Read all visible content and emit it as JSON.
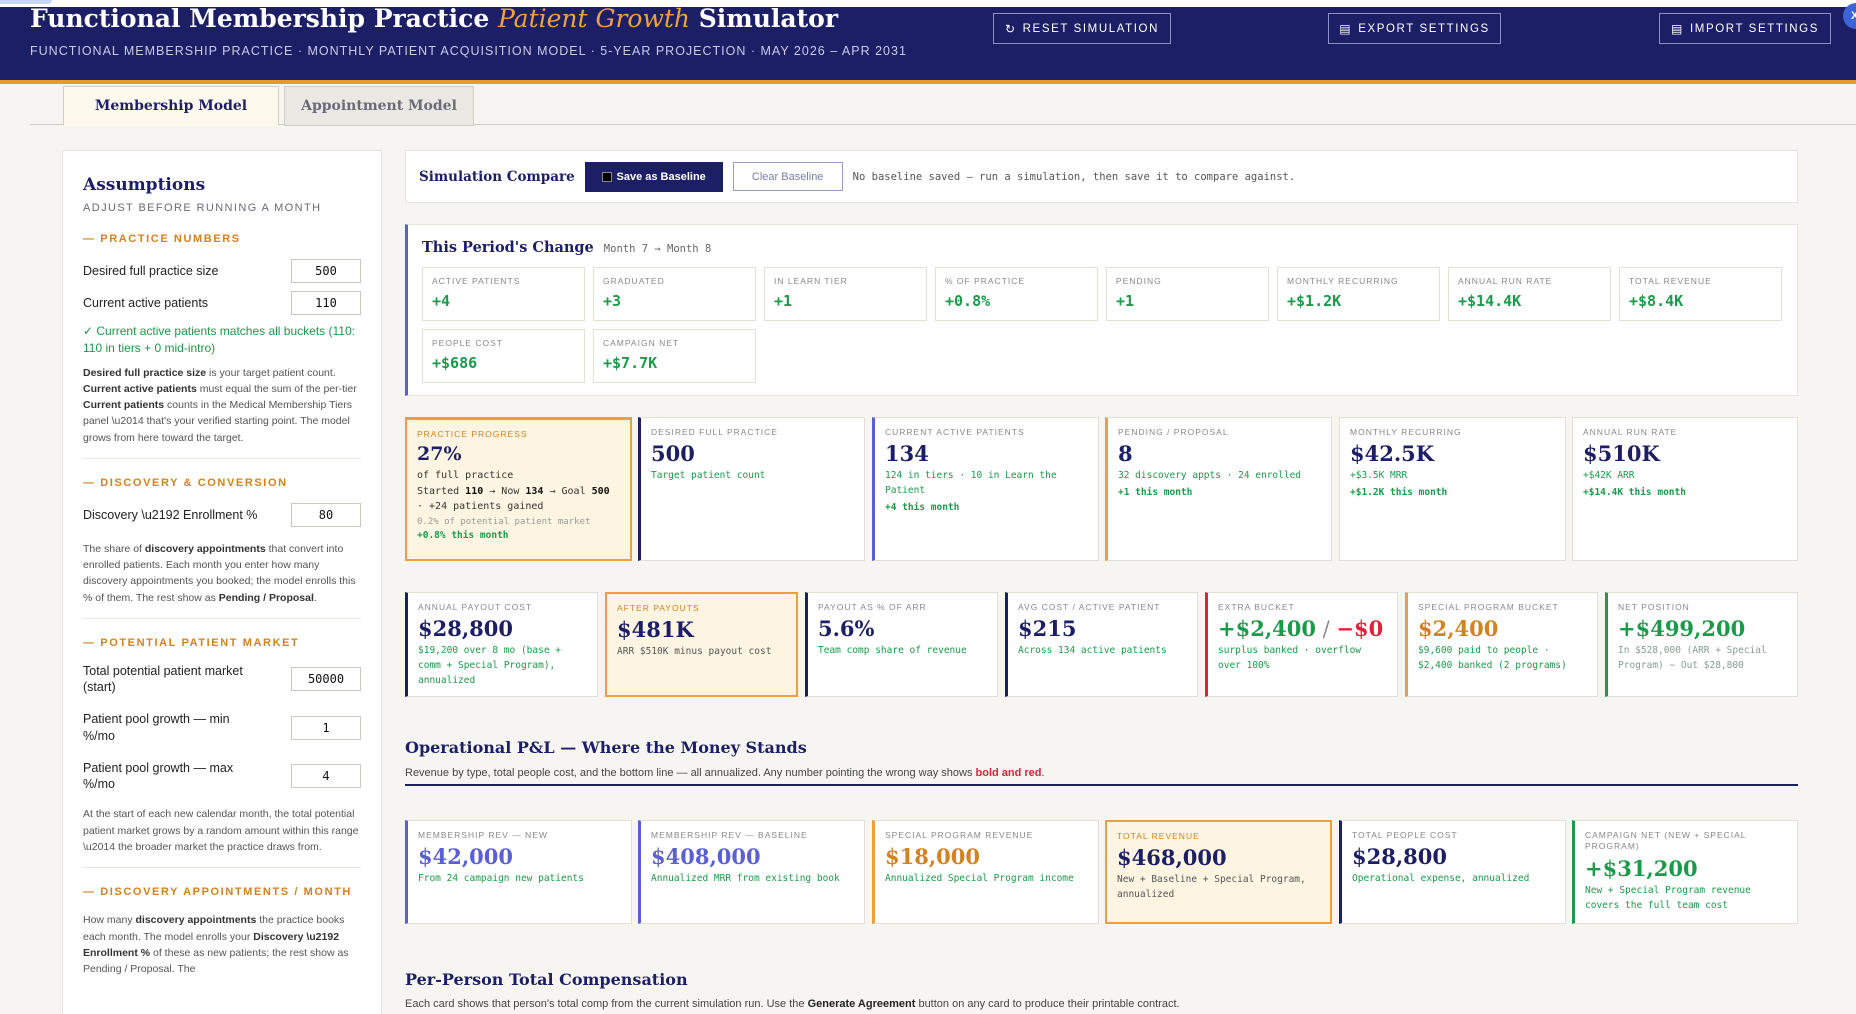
{
  "header": {
    "title_pre": "Functional Membership Practice ",
    "title_accent": "Patient Growth",
    "title_post": " Simulator",
    "subtitle": "FUNCTIONAL MEMBERSHIP PRACTICE · MONTHLY PATIENT ACQUISITION MODEL · 5-YEAR PROJECTION · MAY 2026 – APR 2031",
    "reset_label": "RESET SIMULATION",
    "export_label": "EXPORT SETTINGS",
    "import_label": "IMPORT SETTINGS",
    "close_label": "X"
  },
  "tabs": [
    {
      "label": "Membership Model"
    },
    {
      "label": "Appointment Model"
    }
  ],
  "sidebar": {
    "title": "Assumptions",
    "subtitle": "ADJUST BEFORE RUNNING A MONTH",
    "practice": {
      "heading": "— PRACTICE NUMBERS",
      "desired_label": "Desired full practice size",
      "desired_value": "500",
      "current_label": "Current active patients",
      "current_value": "110",
      "ok_msg": "✓ Current active patients matches all buckets (110: 110 in tiers + 0 mid-intro)",
      "note_b1": "Desired full practice size",
      "note_t1": " is your target patient count. ",
      "note_b2": "Current active patients",
      "note_t2": " must equal the sum of the per-tier ",
      "note_b3": "Current patients",
      "note_t3": " counts in the Medical Membership Tiers panel \\u2014 that's your verified starting point. The model grows from here toward the target."
    },
    "discovery": {
      "heading": "— DISCOVERY & CONVERSION",
      "enroll_label": "Discovery \\u2192 Enrollment %",
      "enroll_value": "80",
      "note_t1": "The share of ",
      "note_b1": "discovery appointments",
      "note_t2": " that convert into enrolled patients. Each month you enter how many discovery appointments you booked; the model enrolls this % of them. The rest show as ",
      "note_b2": "Pending / Proposal",
      "note_t3": "."
    },
    "market": {
      "heading": "— POTENTIAL PATIENT MARKET",
      "total_label": "Total potential patient market (start)",
      "total_value": "50000",
      "min_label": "Patient pool growth — min %/mo",
      "min_value": "1",
      "max_label": "Patient pool growth — max %/mo",
      "max_value": "4",
      "note": "At the start of each new calendar month, the total potential patient market grows by a random amount within this range \\u2014 the broader market the practice draws from."
    },
    "appointments": {
      "heading": "— DISCOVERY APPOINTMENTS / MONTH",
      "note_t1": "How many ",
      "note_b1": "discovery appointments",
      "note_t2": " the practice books each month. The model enrolls your ",
      "note_b2": "Discovery \\u2192 Enrollment %",
      "note_t3": " of these as new patients; the rest show as Pending / Proposal. The"
    }
  },
  "compare": {
    "title": "Simulation Compare",
    "save_label": "Save as Baseline",
    "clear_label": "Clear Baseline",
    "message": "No baseline saved — run a simulation, then save it to compare against."
  },
  "period": {
    "title": "This Period's Change",
    "months": "Month 7 → Month 8",
    "items": [
      {
        "label": "ACTIVE PATIENTS",
        "value": "+4"
      },
      {
        "label": "GRADUATED",
        "value": "+3"
      },
      {
        "label": "IN LEARN TIER",
        "value": "+1"
      },
      {
        "label": "% OF PRACTICE",
        "value": "+0.8%"
      },
      {
        "label": "PENDING",
        "value": "+1"
      },
      {
        "label": "MONTHLY RECURRING",
        "value": "+$1.2K"
      },
      {
        "label": "ANNUAL RUN RATE",
        "value": "+$14.4K"
      },
      {
        "label": "TOTAL REVENUE",
        "value": "+$8.4K"
      },
      {
        "label": "PEOPLE COST",
        "value": "+$686"
      },
      {
        "label": "CAMPAIGN NET",
        "value": "+$7.7K"
      }
    ]
  },
  "kpis": {
    "progress": {
      "label": "PRACTICE PROGRESS",
      "value": "27%",
      "of_label": "of full practice",
      "started_pre": "Started ",
      "started": "110",
      "now_pre": " → Now ",
      "now": "134",
      "goal_pre": " → Goal ",
      "goal": "500",
      "gained": "· +24 patients gained",
      "market_share": "0.2% of potential patient market",
      "delta": "+0.8% this month"
    },
    "desired": {
      "label": "DESIRED FULL PRACTICE",
      "value": "500",
      "sub": "Target patient count"
    },
    "current": {
      "label": "CURRENT ACTIVE PATIENTS",
      "value": "134",
      "sub": "124 in tiers · 10 in Learn the Patient",
      "delta": "+4 this month"
    },
    "pending": {
      "label": "PENDING / PROPOSAL",
      "value": "8",
      "sub": "32 discovery appts · 24 enrolled",
      "delta": "+1 this month"
    },
    "mrr": {
      "label": "MONTHLY RECURRING",
      "value": "$42.5K",
      "sub": "+$3.5K MRR",
      "delta": "+$1.2K this month"
    },
    "arr": {
      "label": "ANNUAL RUN RATE",
      "value": "$510K",
      "sub": "+$42K ARR",
      "delta": "+$14.4K this month"
    }
  },
  "payouts": [
    {
      "label": "ANNUAL PAYOUT COST",
      "value": "$28,800",
      "sub": "$19,200 over 8 mo (base + comm + Special Program), annualized"
    },
    {
      "label": "AFTER PAYOUTS",
      "value": "$481K",
      "sub": "ARR $510K minus payout cost"
    },
    {
      "label": "PAYOUT AS % OF ARR",
      "value": "5.6%",
      "sub": "Team comp share of revenue"
    },
    {
      "label": "AVG COST / ACTIVE PATIENT",
      "value": "$215",
      "sub": "Across 134 active patients"
    },
    {
      "label": "EXTRA BUCKET",
      "value_a": "+$2,400",
      "value_sep": " / ",
      "value_b": "−$0",
      "sub_a": "surplus banked",
      "sub_sep": " · ",
      "sub_b": "overflow over 100%"
    },
    {
      "label": "SPECIAL PROGRAM BUCKET",
      "value": "$2,400",
      "sub": "$9,600 paid to people · $2,400 banked (2 programs)"
    },
    {
      "label": "NET POSITION",
      "value": "+$499,200",
      "sub": "In $528,000 (ARR + Special Program) − Out $28,800"
    }
  ],
  "opl": {
    "title": "Operational P&L — Where the Money Stands",
    "desc": "Revenue by type, total people cost, and the bottom line — all annualized. Any number pointing the wrong way shows ",
    "desc_red": "bold and red",
    "desc_end": ".",
    "cards": [
      {
        "label": "MEMBERSHIP REV — NEW",
        "value": "$42,000",
        "sub": "From 24 campaign new patients"
      },
      {
        "label": "MEMBERSHIP REV — BASELINE",
        "value": "$408,000",
        "sub": "Annualized MRR from existing book"
      },
      {
        "label": "SPECIAL PROGRAM REVENUE",
        "value": "$18,000",
        "sub": "Annualized Special Program income"
      },
      {
        "label": "TOTAL REVENUE",
        "value": "$468,000",
        "sub": "New + Baseline + Special Program, annualized"
      },
      {
        "label": "TOTAL PEOPLE COST",
        "value": "$28,800",
        "sub": "Operational expense, annualized"
      },
      {
        "label": "CAMPAIGN NET (NEW + SPECIAL PROGRAM)",
        "value": "+$31,200",
        "sub": "New + Special Program revenue covers the full team cost"
      }
    ]
  },
  "ppc": {
    "title": "Per-Person Total Compensation",
    "desc_pre": "Each card shows that person's total comp from the current simulation run. Use the ",
    "desc_b": "Generate Agreement",
    "desc_post": " button on any card to produce their printable contract."
  },
  "colors": {
    "navy": "#1d1f66",
    "accent": "#e79a2a",
    "green": "#1b9a4a",
    "red": "#e0213a",
    "blue": "#5a5fd6"
  }
}
